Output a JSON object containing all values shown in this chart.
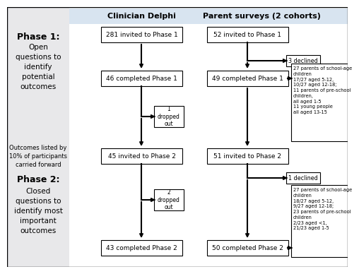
{
  "bg_color": "#ffffff",
  "col_header_delphi": "Clinician Delphi",
  "col_header_parent": "Parent surveys (2 cohorts)",
  "phase1_label": "Phase 1:",
  "phase1_desc": "Open\nquestions to\nidentify\npotential\noutcomes",
  "phase1_footnote": "Outcomes listed by\n10% of participants\ncarried forward",
  "phase2_label": "Phase 2:",
  "phase2_desc": "Closed\nquestions to\nidentify most\nimportant\noutcomes",
  "detail1_text": "27 parents of school-age\nchildren\n17/27 aged 5-12,\n10/27 aged 12-18;\n11 parents of pre-school\nchildren,\nall aged 1-5\n11 young people\nall aged 13-15",
  "detail2_text": "27 parents of school-age\nchildren\n18/27 aged 5-12,\n9/27 aged 12-18;\n23 parents of pre-school\nchildren\n2/23 aged <1,\n21/23 aged 1-5"
}
